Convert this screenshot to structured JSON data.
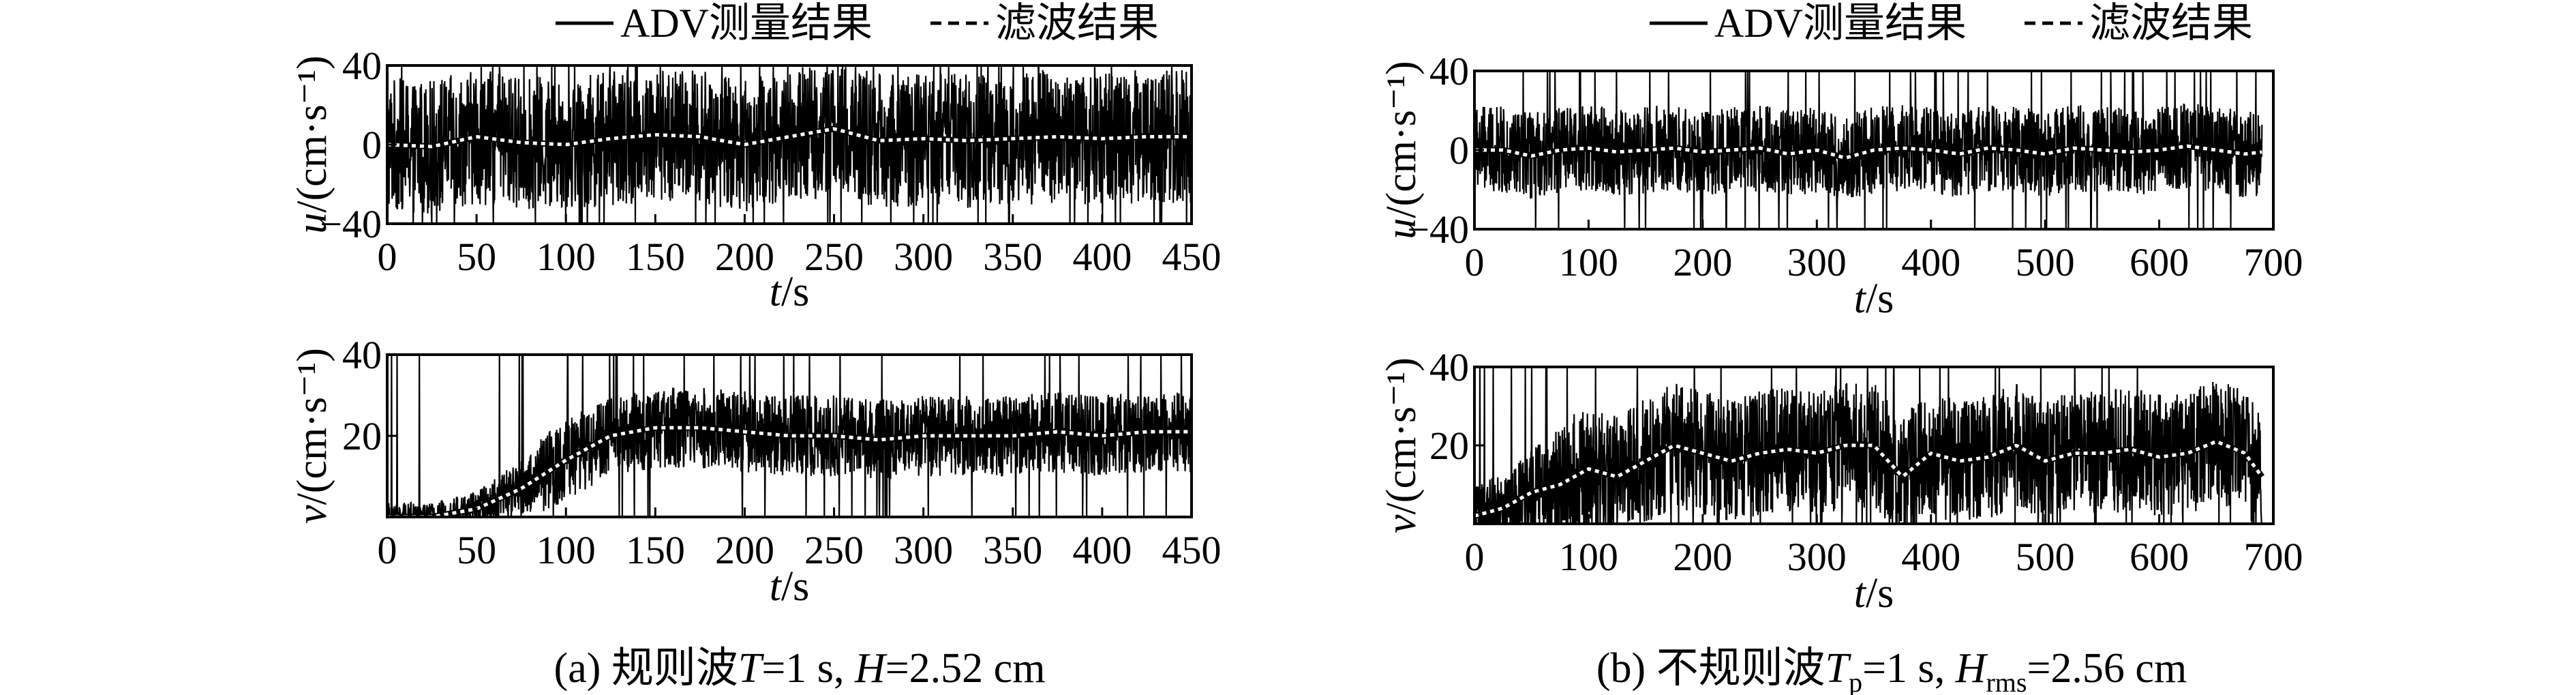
{
  "legend": {
    "measured_label": "ADV测量结果",
    "filtered_label": "滤波结果"
  },
  "panels": [
    {
      "caption": "(a) 规则波T=1 s, H=2.52 cm",
      "caption_parts": {
        "prefix": "(a) 规则波",
        "T_sym": "T",
        "T_val": "=1 s, ",
        "H_sym": "H",
        "H_val": "=2.52 cm"
      }
    },
    {
      "caption": "(b) 不规则波Tp=1 s, Hrms=2.56 cm",
      "caption_parts": {
        "prefix": "(b) 不规则波",
        "T_sym": "T",
        "T_sub": "p",
        "T_val": "=1 s, ",
        "H_sym": "H",
        "H_sub": "rms",
        "H_val": "=2.56 cm"
      }
    }
  ],
  "axis_text": {
    "u_label": "u/(cm·s⁻¹)",
    "v_label": "v/(cm·s⁻¹)",
    "t_label": "t/s"
  },
  "chart_data": [
    {
      "id": "a-u",
      "type": "line",
      "xlabel": "t/s",
      "ylabel": "u/(cm·s⁻¹)",
      "xlim": [
        0,
        450
      ],
      "ylim": [
        -40,
        40
      ],
      "xticks": [
        0,
        50,
        100,
        150,
        200,
        250,
        300,
        350,
        400,
        450
      ],
      "yticks": [
        -40,
        0,
        40
      ],
      "series": [
        {
          "name": "ADV测量结果",
          "style": "solid-black",
          "mean": 2,
          "amplitude": 34,
          "clip": true
        },
        {
          "name": "滤波结果",
          "style": "dotted-white",
          "x": [
            0,
            25,
            50,
            75,
            100,
            125,
            150,
            175,
            200,
            225,
            250,
            275,
            300,
            325,
            350,
            375,
            400,
            425,
            450
          ],
          "y": [
            0,
            -1,
            4,
            1,
            0,
            3,
            5,
            4,
            0,
            4,
            8,
            2,
            3,
            2,
            3,
            4,
            3,
            4,
            4
          ]
        }
      ]
    },
    {
      "id": "a-v",
      "type": "line",
      "xlabel": "t/s",
      "ylabel": "v/(cm·s⁻¹)",
      "xlim": [
        0,
        450
      ],
      "ylim": [
        0,
        40
      ],
      "xticks": [
        0,
        50,
        100,
        150,
        200,
        250,
        300,
        350,
        400,
        450
      ],
      "yticks": [
        20,
        40
      ],
      "series": [
        {
          "name": "ADV测量结果",
          "style": "solid-black",
          "amplitude": 10,
          "clip": true
        },
        {
          "name": "滤波结果",
          "style": "dotted-white",
          "x": [
            0,
            25,
            50,
            75,
            100,
            125,
            150,
            175,
            200,
            225,
            250,
            275,
            300,
            325,
            350,
            375,
            400,
            425,
            450
          ],
          "y": [
            0,
            0,
            2,
            7,
            14,
            20,
            22,
            22,
            21,
            20,
            20,
            19,
            20,
            20,
            20,
            21,
            20,
            21,
            21
          ]
        }
      ]
    },
    {
      "id": "b-u",
      "type": "line",
      "xlabel": "t/s",
      "ylabel": "u/(cm·s⁻¹)",
      "xlim": [
        0,
        700
      ],
      "ylim": [
        -40,
        40
      ],
      "xticks": [
        0,
        100,
        200,
        300,
        400,
        500,
        600,
        700
      ],
      "yticks": [
        -40,
        0,
        40
      ],
      "series": [
        {
          "name": "ADV测量结果",
          "style": "solid-black",
          "mean": 0,
          "amplitude": 22,
          "clip": true
        },
        {
          "name": "滤波结果",
          "style": "dotted-white",
          "x": [
            0,
            25,
            50,
            75,
            100,
            125,
            150,
            175,
            200,
            225,
            250,
            275,
            300,
            325,
            350,
            375,
            400,
            425,
            450,
            475,
            500,
            525,
            550,
            575,
            600,
            625,
            650,
            675,
            690
          ],
          "y": [
            0,
            0,
            -3,
            0,
            1,
            -1,
            0,
            1,
            -1,
            0,
            1,
            -2,
            0,
            -4,
            0,
            1,
            0,
            -2,
            1,
            0,
            -2,
            1,
            0,
            -1,
            0,
            2,
            0,
            -2,
            -1
          ]
        }
      ]
    },
    {
      "id": "b-v",
      "type": "line",
      "xlabel": "t/s",
      "ylabel": "v/(cm·s⁻¹)",
      "xlim": [
        0,
        700
      ],
      "ylim": [
        0,
        40
      ],
      "xticks": [
        0,
        100,
        200,
        300,
        400,
        500,
        600,
        700
      ],
      "yticks": [
        20,
        40
      ],
      "series": [
        {
          "name": "ADV测量结果",
          "style": "solid-black",
          "amplitude": 16,
          "clip": true
        },
        {
          "name": "滤波结果",
          "style": "dotted-white",
          "x": [
            0,
            25,
            50,
            75,
            100,
            125,
            150,
            175,
            200,
            225,
            250,
            275,
            300,
            325,
            350,
            375,
            400,
            425,
            450,
            475,
            500,
            525,
            550,
            575,
            600,
            625,
            650,
            675,
            690
          ],
          "y": [
            2,
            4,
            8,
            10,
            14,
            12,
            16,
            20,
            18,
            16,
            18,
            19,
            18,
            20,
            20,
            12,
            18,
            16,
            17,
            20,
            16,
            18,
            18,
            19,
            17,
            18,
            21,
            18,
            12
          ]
        }
      ]
    }
  ]
}
